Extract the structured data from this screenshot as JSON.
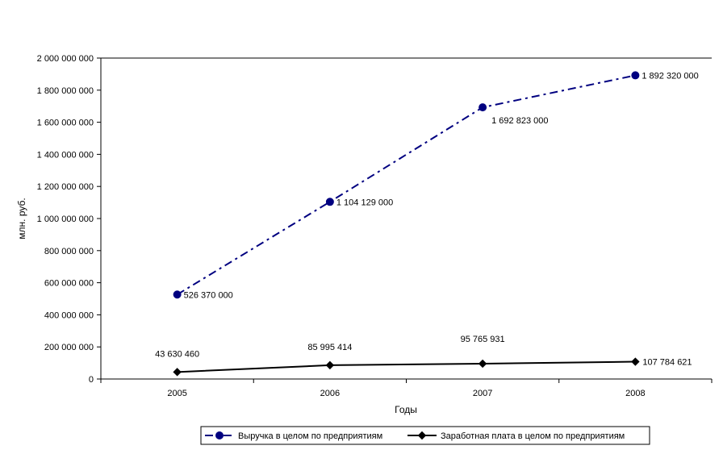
{
  "chart_data": {
    "type": "line",
    "title": "",
    "xlabel": "Годы",
    "ylabel": "млн. руб.",
    "categories": [
      "2005",
      "2006",
      "2007",
      "2008"
    ],
    "ylim": [
      0,
      2000000000
    ],
    "y_ticks": [
      "0",
      "200 000 000",
      "400 000 000",
      "600 000 000",
      "800 000 000",
      "1 000 000 000",
      "1 200 000 000",
      "1 400 000 000",
      "1 600 000 000",
      "1 800 000 000",
      "2 000 000 000"
    ],
    "y_tick_values": [
      0,
      200000000,
      400000000,
      600000000,
      800000000,
      1000000000,
      1200000000,
      1400000000,
      1600000000,
      1800000000,
      2000000000
    ],
    "grid": false,
    "legend_position": "bottom",
    "series": [
      {
        "name": "Выручка в целом по предприятиям",
        "values": [
          526370000,
          1104129000,
          1692823000,
          1892320000
        ],
        "labels": [
          "526 370 000",
          "1 104 129 000",
          "1 692 823 000",
          "1 892 320 000"
        ],
        "color": "#000080",
        "line_style": "dash-dot",
        "marker": "circle"
      },
      {
        "name": "Заработная плата в целом по предприятиям",
        "values": [
          43630460,
          85995414,
          95765931,
          107784621
        ],
        "labels": [
          "43 630 460",
          "85 995 414",
          "95 765 931",
          "107 784 621"
        ],
        "color": "#000000",
        "line_style": "solid",
        "marker": "diamond"
      }
    ]
  }
}
